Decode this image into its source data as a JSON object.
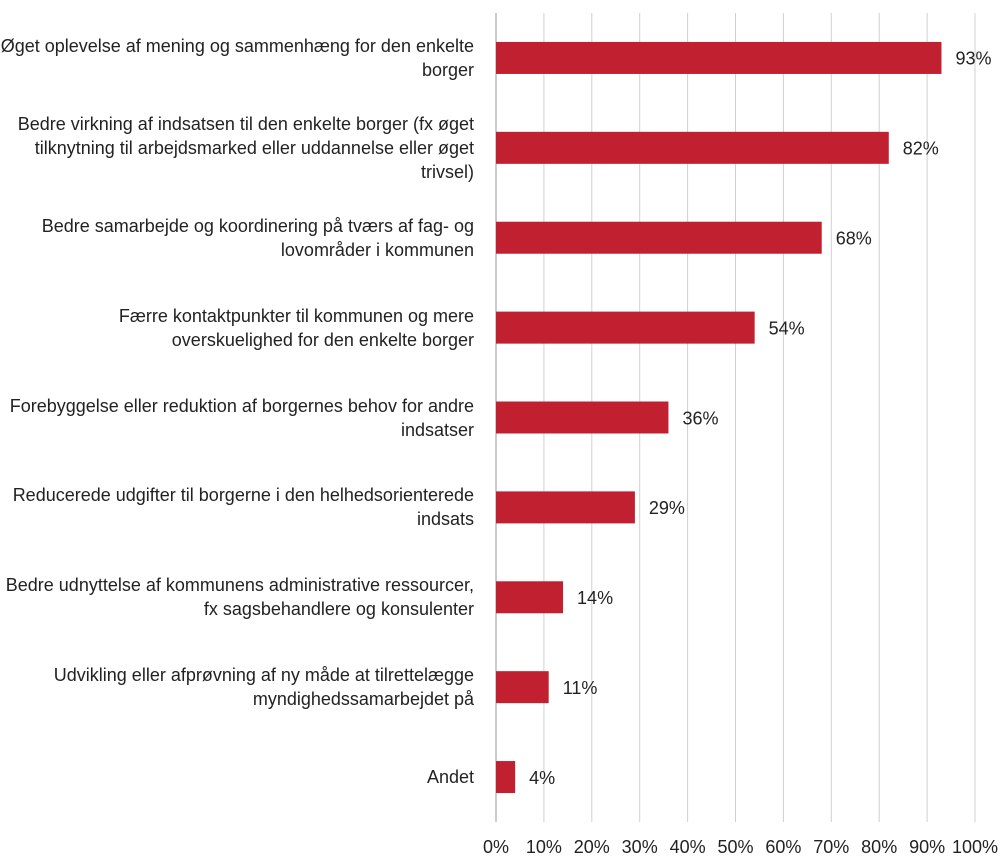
{
  "chart_data": {
    "type": "barh",
    "categories": [
      "Øget oplevelse af mening og sammenhæng for den enkelte borger",
      "Bedre virkning af indsatsen til den enkelte borger (fx øget tilknytning til arbejdsmarked eller uddannelse eller øget trivsel)",
      "Bedre samarbejde og koordinering på tværs af fag- og lovområder i kommunen",
      "Færre kontaktpunkter til kommunen og mere overskuelighed for den enkelte borger",
      "Forebyggelse eller reduktion af borgernes behov for andre indsatser",
      "Reducerede udgifter til borgerne i den helhedsorienterede indsats",
      "Bedre udnyttelse af kommunens administrative ressourcer, fx sagsbehandlere og konsulenter",
      "Udvikling eller afprøvning af ny måde at tilrettelægge myndighedssamarbejdet på",
      "Andet"
    ],
    "values": [
      93,
      82,
      68,
      54,
      36,
      29,
      14,
      11,
      4
    ],
    "value_labels": [
      "93%",
      "82%",
      "68%",
      "54%",
      "36%",
      "29%",
      "14%",
      "11%",
      "4%"
    ],
    "color": "#c0202f",
    "xlim": [
      0,
      100
    ],
    "xticks": [
      {
        "value": 0,
        "label": "0%"
      },
      {
        "value": 10,
        "label": "10%"
      },
      {
        "value": 20,
        "label": "20%"
      },
      {
        "value": 30,
        "label": "30%"
      },
      {
        "value": 40,
        "label": "40%"
      },
      {
        "value": 50,
        "label": "50%"
      },
      {
        "value": 60,
        "label": "60%"
      },
      {
        "value": 70,
        "label": "70%"
      },
      {
        "value": 80,
        "label": "80%"
      },
      {
        "value": 90,
        "label": "90%"
      },
      {
        "value": 100,
        "label": "100%"
      }
    ],
    "grid": true
  }
}
